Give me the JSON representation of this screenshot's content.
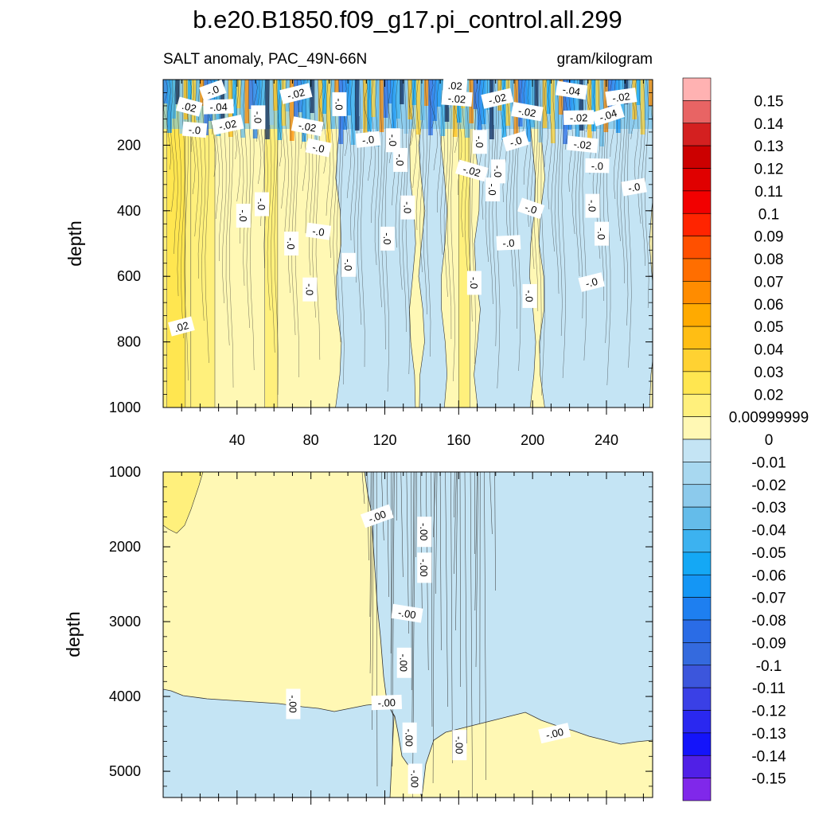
{
  "chart_data": {
    "type": "heatmap",
    "title": "b.e20.B1850.f09_g17.pi_control.all.299",
    "subtitle_left": "SALT anomaly, PAC_49N-66N",
    "subtitle_right": "gram/kilogram",
    "colorbar": {
      "labels": [
        "0.15",
        "0.14",
        "0.13",
        "0.12",
        "0.11",
        "0.1",
        "0.09",
        "0.08",
        "0.07",
        "0.06",
        "0.05",
        "0.04",
        "0.03",
        "0.02",
        "0.00999999",
        "0",
        "-0.01",
        "-0.02",
        "-0.03",
        "-0.04",
        "-0.05",
        "-0.06",
        "-0.07",
        "-0.08",
        "-0.09",
        "-0.1",
        "-0.11",
        "-0.12",
        "-0.13",
        "-0.14",
        "-0.15"
      ],
      "colors": [
        "#ffb2b2",
        "#e86464",
        "#d42020",
        "#cc0000",
        "#e00000",
        "#f20000",
        "#ff2400",
        "#ff5000",
        "#ff6e00",
        "#ff8c00",
        "#ffaa00",
        "#ffbe14",
        "#ffd232",
        "#ffe650",
        "#fff07c",
        "#fff8b4",
        "#c4e4f4",
        "#a8d8f0",
        "#8ccaec",
        "#64bcea",
        "#3cb2f0",
        "#14a8f5",
        "#1496f5",
        "#1e7ff0",
        "#2a6ce6",
        "#346ade",
        "#3c56dc",
        "#3a40e6",
        "#2a28f0",
        "#1414fa",
        "#5020e6",
        "#8028ea"
      ]
    },
    "panels": [
      {
        "ylabel": "depth",
        "ylim": [
          1000,
          0
        ],
        "yticks": [
          "200",
          "400",
          "600",
          "800",
          "1000"
        ],
        "xticks": [
          "40",
          "80",
          "120",
          "160",
          "200",
          "240"
        ],
        "xlim": [
          0,
          265
        ],
        "contour_labels": [
          {
            "text": "-.0",
            "x": 27,
            "y": 35
          },
          {
            "text": ".02",
            "x": 158,
            "y": 20
          },
          {
            "text": "-.02",
            "x": 72,
            "y": 45
          },
          {
            "text": "-.04",
            "x": 221,
            "y": 35
          },
          {
            "text": "-.02",
            "x": 248,
            "y": 55
          },
          {
            "text": ".02",
            "x": 14,
            "y": 85
          },
          {
            "text": "-.04",
            "x": 30,
            "y": 85
          },
          {
            "text": "-.0",
            "x": 95,
            "y": 75
          },
          {
            "text": "-.02",
            "x": 159,
            "y": 60
          },
          {
            "text": "-.02",
            "x": 181,
            "y": 60
          },
          {
            "text": "-.02",
            "x": 197,
            "y": 100
          },
          {
            "text": "-.0",
            "x": 51,
            "y": 115
          },
          {
            "text": "-.02",
            "x": 167,
            "y": 280
          },
          {
            "text": "-.02",
            "x": 225,
            "y": 118
          },
          {
            "text": "-.04",
            "x": 241,
            "y": 110
          },
          {
            "text": "-.0",
            "x": 17,
            "y": 155
          },
          {
            "text": "-.02",
            "x": 35,
            "y": 140
          },
          {
            "text": "-.02",
            "x": 78,
            "y": 145
          },
          {
            "text": "-.0",
            "x": 111,
            "y": 185
          },
          {
            "text": "-.0",
            "x": 124,
            "y": 185
          },
          {
            "text": "-.0",
            "x": 171,
            "y": 190
          },
          {
            "text": "-.0",
            "x": 191,
            "y": 190
          },
          {
            "text": "-.02",
            "x": 227,
            "y": 200
          },
          {
            "text": "-.0",
            "x": 43,
            "y": 415
          },
          {
            "text": "-.0",
            "x": 84,
            "y": 210
          },
          {
            "text": "-.0",
            "x": 128,
            "y": 245
          },
          {
            "text": "-.0",
            "x": 181,
            "y": 280
          },
          {
            "text": "-.0",
            "x": 235,
            "y": 265
          },
          {
            "text": "-.0",
            "x": 69,
            "y": 500
          },
          {
            "text": "-.0",
            "x": 178,
            "y": 335
          },
          {
            "text": "-.0",
            "x": 255,
            "y": 330
          },
          {
            "text": "-.0",
            "x": 53,
            "y": 380
          },
          {
            "text": "-.0",
            "x": 132,
            "y": 390
          },
          {
            "text": "-.0",
            "x": 199,
            "y": 395
          },
          {
            "text": "-.0",
            "x": 232,
            "y": 385
          },
          {
            "text": ".02",
            "x": 10,
            "y": 755
          },
          {
            "text": "-.0",
            "x": 84,
            "y": 465
          },
          {
            "text": "-.0",
            "x": 121,
            "y": 485
          },
          {
            "text": "-.0",
            "x": 237,
            "y": 470
          },
          {
            "text": "-.0",
            "x": 187,
            "y": 500
          },
          {
            "text": "-.0",
            "x": 100,
            "y": 565
          },
          {
            "text": "-.0",
            "x": 168,
            "y": 620
          },
          {
            "text": "-.0",
            "x": 232,
            "y": 620
          },
          {
            "text": "-.0",
            "x": 79,
            "y": 640
          },
          {
            "text": "-.0",
            "x": 198,
            "y": 660
          }
        ]
      },
      {
        "ylabel": "depth",
        "ylim": [
          5350,
          1000
        ],
        "yticks": [
          "1000",
          "2000",
          "3000",
          "4000",
          "5000"
        ],
        "xlim": [
          0,
          265
        ],
        "contour_labels": [
          {
            "text": "-.00",
            "x": 116,
            "y": 1600
          },
          {
            "text": "-.00",
            "x": 141,
            "y": 1800
          },
          {
            "text": "-.00",
            "x": 141,
            "y": 2280
          },
          {
            "text": "-.00",
            "x": 132,
            "y": 2900
          },
          {
            "text": "-.00",
            "x": 130,
            "y": 3550
          },
          {
            "text": "-.00",
            "x": 70,
            "y": 4100
          },
          {
            "text": "-.00",
            "x": 121,
            "y": 4090
          },
          {
            "text": "-.00",
            "x": 133,
            "y": 4550
          },
          {
            "text": "-.00",
            "x": 160,
            "y": 4650
          },
          {
            "text": "-.00",
            "x": 212,
            "y": 4500
          },
          {
            "text": "-.00",
            "x": 136,
            "y": 5100
          }
        ]
      }
    ]
  }
}
